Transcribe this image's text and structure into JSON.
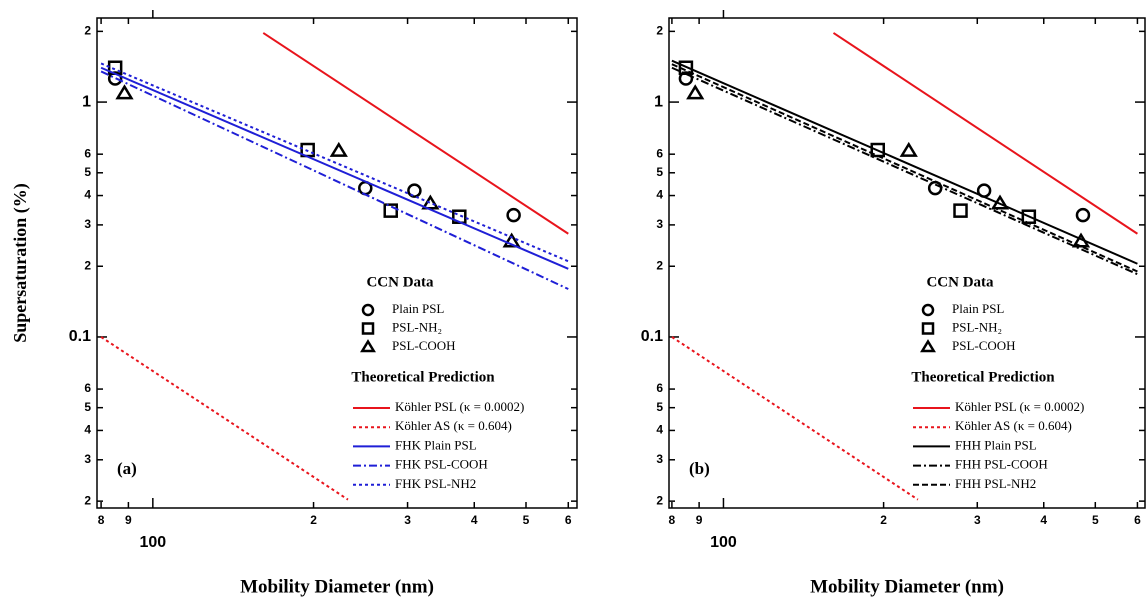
{
  "chart_data": [
    {
      "type": "scatter",
      "panel_label": "(a)",
      "x_label": "Mobility Diameter (nm)",
      "y_label": "Supersaturation (%)",
      "xscale": "log",
      "yscale": "log",
      "xlim": [
        78.6,
        623
      ],
      "ylim": [
        0.0187,
        2.28
      ],
      "xticks": [
        {
          "value": 80,
          "label": "8"
        },
        {
          "value": 90,
          "label": "9"
        },
        100,
        {
          "value": 200,
          "label": "2"
        },
        {
          "value": 300,
          "label": "3"
        },
        {
          "value": 400,
          "label": "4"
        },
        {
          "value": 500,
          "label": "5"
        },
        {
          "value": 600,
          "label": "6"
        }
      ],
      "yticks": [
        2,
        1,
        {
          "value": 0.6,
          "label": "6"
        },
        {
          "value": 0.5,
          "label": "5"
        },
        {
          "value": 0.4,
          "label": "4"
        },
        {
          "value": 0.3,
          "label": "3"
        },
        {
          "value": 0.2,
          "label": "2"
        },
        0.1,
        {
          "value": 0.06,
          "label": "6"
        },
        {
          "value": 0.05,
          "label": "5"
        },
        {
          "value": 0.04,
          "label": "4"
        },
        {
          "value": 0.03,
          "label": "3"
        },
        {
          "value": 0.02,
          "label": "2"
        }
      ],
      "legend_titles": [
        "CCN Data",
        "Theoretical Prediction"
      ],
      "series": [
        {
          "name": "Plain PSL",
          "marker": "circle",
          "color": "#000000",
          "x": [
            85,
            250,
            309,
            474
          ],
          "values": [
            1.26,
            0.43,
            0.42,
            0.33
          ]
        },
        {
          "name": "PSL-NH₂",
          "marker": "square",
          "color": "#000000",
          "x": [
            85,
            195,
            279,
            375
          ],
          "values": [
            1.4,
            0.625,
            0.345,
            0.325
          ]
        },
        {
          "name": "PSL-COOH",
          "marker": "triangle",
          "color": "#000000",
          "x": [
            88.5,
            223,
            331,
            470
          ],
          "values": [
            1.09,
            0.62,
            0.37,
            0.255
          ]
        },
        {
          "name": "Köhler PSL (κ = 0.0002)",
          "dash": "solid",
          "color": "#e8141c",
          "x": [
            161,
            600
          ],
          "values": [
            1.97,
            0.275
          ]
        },
        {
          "name": "Köhler AS (κ = 0.604)",
          "dash": "dotted",
          "color": "#e8141c",
          "x": [
            80,
            232
          ],
          "values": [
            0.1,
            0.0203
          ]
        },
        {
          "name": "FHK Plain PSL",
          "dash": "solid",
          "color": "#1f1fd6",
          "x": [
            80,
            600
          ],
          "values": [
            1.4,
            0.195
          ]
        },
        {
          "name": "FHK PSL-COOH",
          "dash": "dashdot",
          "color": "#1f1fd6",
          "x": [
            80,
            600
          ],
          "values": [
            1.35,
            0.16
          ]
        },
        {
          "name": "FHK PSL-NH2",
          "dash": "dotted",
          "color": "#1f1fd6",
          "x": [
            80,
            600
          ],
          "values": [
            1.46,
            0.21
          ]
        }
      ]
    },
    {
      "type": "scatter",
      "panel_label": "(b)",
      "x_label": "Mobility Diameter (nm)",
      "xscale": "log",
      "yscale": "log",
      "xlim": [
        79,
        620
      ],
      "ylim": [
        0.0187,
        2.28
      ],
      "xticks": [
        {
          "value": 80,
          "label": "8"
        },
        {
          "value": 90,
          "label": "9"
        },
        100,
        {
          "value": 200,
          "label": "2"
        },
        {
          "value": 300,
          "label": "3"
        },
        {
          "value": 400,
          "label": "4"
        },
        {
          "value": 500,
          "label": "5"
        },
        {
          "value": 600,
          "label": "6"
        }
      ],
      "yticks": [
        2,
        1,
        {
          "value": 0.6,
          "label": "6"
        },
        {
          "value": 0.5,
          "label": "5"
        },
        {
          "value": 0.4,
          "label": "4"
        },
        {
          "value": 0.3,
          "label": "3"
        },
        {
          "value": 0.2,
          "label": "2"
        },
        0.1,
        {
          "value": 0.06,
          "label": "6"
        },
        {
          "value": 0.05,
          "label": "5"
        },
        {
          "value": 0.04,
          "label": "4"
        },
        {
          "value": 0.03,
          "label": "3"
        },
        {
          "value": 0.02,
          "label": "2"
        }
      ],
      "legend_titles": [
        "CCN Data",
        "Theoretical Prediction"
      ],
      "series": [
        {
          "name": "Plain PSL",
          "marker": "circle",
          "color": "#000000",
          "x": [
            85,
            250,
            309,
            474
          ],
          "values": [
            1.26,
            0.43,
            0.42,
            0.33
          ]
        },
        {
          "name": "PSL-NH₂",
          "marker": "square",
          "color": "#000000",
          "x": [
            85,
            195,
            279,
            375
          ],
          "values": [
            1.4,
            0.625,
            0.345,
            0.325
          ]
        },
        {
          "name": "PSL-COOH",
          "marker": "triangle",
          "color": "#000000",
          "x": [
            88.5,
            223,
            331,
            470
          ],
          "values": [
            1.09,
            0.62,
            0.37,
            0.255
          ]
        },
        {
          "name": "Köhler PSL (κ = 0.0002)",
          "dash": "solid",
          "color": "#e8141c",
          "x": [
            161,
            600
          ],
          "values": [
            1.97,
            0.275
          ]
        },
        {
          "name": "Köhler AS (κ = 0.604)",
          "dash": "dotted",
          "color": "#e8141c",
          "x": [
            80,
            232
          ],
          "values": [
            0.1,
            0.0203
          ]
        },
        {
          "name": "FHH Plain PSL",
          "dash": "solid",
          "color": "#000000",
          "x": [
            80,
            600
          ],
          "values": [
            1.5,
            0.205
          ]
        },
        {
          "name": "FHH PSL-COOH",
          "dash": "dashdot",
          "color": "#000000",
          "x": [
            80,
            600
          ],
          "values": [
            1.4,
            0.185
          ]
        },
        {
          "name": "FHH PSL-NH2",
          "dash": "dashed",
          "color": "#000000",
          "x": [
            80,
            600
          ],
          "values": [
            1.45,
            0.19
          ]
        }
      ]
    }
  ]
}
